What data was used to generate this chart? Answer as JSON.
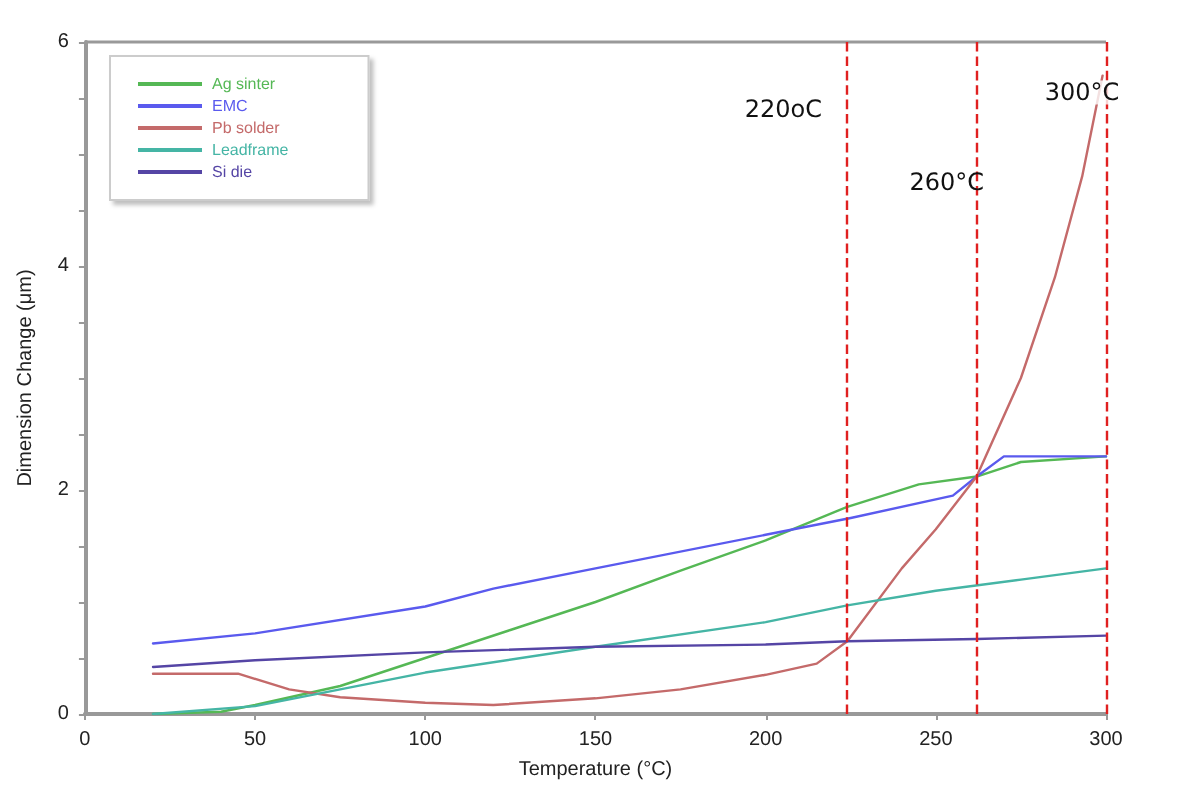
{
  "chart_data": {
    "type": "line",
    "xlabel": "Temperature (°C)",
    "ylabel": "Dimension Change (μm)",
    "xlim": [
      0,
      300
    ],
    "xticks": [
      0,
      50,
      100,
      150,
      200,
      250,
      300
    ],
    "ylim": [
      0,
      6
    ],
    "yticks": [
      0,
      {
        "value": 0.5,
        "label": null
      },
      {
        "value": 1,
        "label": null
      },
      {
        "value": 1.5,
        "label": null
      },
      2,
      {
        "value": 2.5,
        "label": null
      },
      {
        "value": 3,
        "label": null
      },
      {
        "value": 3.5,
        "label": null
      },
      4,
      {
        "value": 4.5,
        "label": null
      },
      {
        "value": 5,
        "label": null
      },
      {
        "value": 5.5,
        "label": null
      },
      6
    ],
    "grid": false,
    "legend": "top left",
    "marker": "none",
    "line_style": "solid",
    "series": [
      {
        "name": "Ag sinter",
        "color": "#55b855",
        "x": [
          20,
          40,
          50,
          75,
          100,
          125,
          150,
          175,
          200,
          224,
          245,
          262,
          275,
          300
        ],
        "values": [
          0,
          0.02,
          0.08,
          0.25,
          0.5,
          0.75,
          1.0,
          1.28,
          1.55,
          1.85,
          2.05,
          2.12,
          2.25,
          2.3
        ]
      },
      {
        "name": "EMC",
        "color": "#5a5aee",
        "x": [
          20,
          50,
          100,
          120,
          150,
          200,
          225,
          255,
          262,
          270,
          300
        ],
        "values": [
          0.63,
          0.72,
          0.96,
          1.12,
          1.3,
          1.6,
          1.75,
          1.95,
          2.12,
          2.3,
          2.3
        ]
      },
      {
        "name": "Pb solder",
        "color": "#c46a6a",
        "x": [
          20,
          45,
          60,
          75,
          100,
          120,
          150,
          175,
          200,
          215,
          224,
          240,
          250,
          262,
          275,
          285,
          293,
          299
        ],
        "values": [
          0.36,
          0.36,
          0.22,
          0.15,
          0.1,
          0.08,
          0.14,
          0.22,
          0.35,
          0.45,
          0.65,
          1.3,
          1.65,
          2.12,
          3.0,
          3.9,
          4.8,
          5.7
        ]
      },
      {
        "name": "Leadframe",
        "color": "#45b5a5",
        "x": [
          20,
          50,
          75,
          100,
          150,
          200,
          224,
          250,
          275,
          300
        ],
        "values": [
          0,
          0.07,
          0.22,
          0.37,
          0.6,
          0.82,
          0.97,
          1.1,
          1.2,
          1.3
        ]
      },
      {
        "name": "Si die",
        "color": "#5545a5",
        "x": [
          20,
          50,
          100,
          150,
          200,
          224,
          262,
          300
        ],
        "values": [
          0.42,
          0.48,
          0.55,
          0.6,
          0.62,
          0.65,
          0.67,
          0.7
        ]
      }
    ],
    "ref_lines": [
      {
        "axis": "x",
        "value": 224,
        "label": "220oC",
        "color": "#e02020",
        "line_style": "dashed"
      },
      {
        "axis": "x",
        "value": 262,
        "label": "260°C",
        "color": "#e02020",
        "line_style": "dashed"
      },
      {
        "axis": "x",
        "value": 300,
        "label": "300°C",
        "color": "#e02020",
        "line_style": "dashed"
      }
    ]
  }
}
